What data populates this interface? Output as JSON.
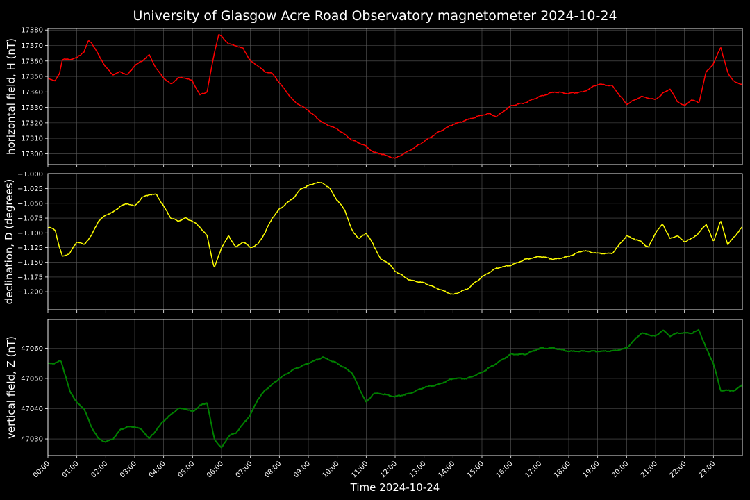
{
  "chart_data": {
    "type": "line",
    "title": "University of Glasgow Acre Road Observatory magnetometer 2024-10-24",
    "xlabel": "Time 2024-10-24",
    "x_tick_labels": [
      "00:00",
      "01:00",
      "02:00",
      "03:00",
      "04:00",
      "05:00",
      "06:00",
      "07:00",
      "08:00",
      "09:00",
      "10:00",
      "11:00",
      "12:00",
      "13:00",
      "14:00",
      "15:00",
      "16:00",
      "17:00",
      "18:00",
      "19:00",
      "20:00",
      "21:00",
      "22:00",
      "23:00"
    ],
    "xlim_hours": [
      0,
      24
    ],
    "grid": true,
    "panels": [
      {
        "name": "horizontal",
        "ylabel": "horizontal field, H (nT)",
        "color": "#ff0000",
        "ylim": [
          17293,
          17381
        ],
        "y_ticks": [
          17300,
          17310,
          17320,
          17330,
          17340,
          17350,
          17360,
          17370,
          17380
        ],
        "y_tick_labels": [
          "17300",
          "17310",
          "17320",
          "17330",
          "17340",
          "17350",
          "17360",
          "17370",
          "17380"
        ],
        "x_hours": [
          0,
          0.25,
          0.4,
          0.5,
          0.75,
          1.0,
          1.25,
          1.4,
          1.5,
          1.75,
          2.0,
          2.25,
          2.5,
          2.75,
          3.0,
          3.25,
          3.5,
          3.75,
          4.0,
          4.25,
          4.5,
          4.75,
          5.0,
          5.25,
          5.5,
          5.75,
          5.9,
          6.0,
          6.25,
          6.5,
          6.75,
          7.0,
          7.25,
          7.5,
          7.75,
          8.0,
          8.5,
          9.0,
          9.5,
          10.0,
          10.5,
          11.0,
          11.25,
          11.5,
          12.0,
          12.5,
          13.0,
          13.5,
          14.0,
          14.5,
          15.0,
          15.25,
          15.5,
          16.0,
          16.5,
          17.0,
          17.5,
          18.0,
          18.5,
          19.0,
          19.5,
          20.0,
          20.5,
          21.0,
          21.25,
          21.5,
          21.75,
          22.0,
          22.25,
          22.5,
          22.75,
          23.0,
          23.25,
          23.5,
          23.75,
          24.0
        ],
        "values": [
          17349,
          17347,
          17352,
          17361,
          17361,
          17362,
          17366,
          17373,
          17372,
          17364,
          17356,
          17351,
          17353,
          17351,
          17357,
          17360,
          17364,
          17355,
          17349,
          17345,
          17349,
          17349,
          17347,
          17338,
          17340,
          17365,
          17377,
          17376,
          17371,
          17370,
          17368,
          17360,
          17357,
          17353,
          17352,
          17346,
          17334,
          17328,
          17320,
          17316,
          17309,
          17305,
          17301,
          17300,
          17297,
          17302,
          17308,
          17314,
          17319,
          17322,
          17325,
          17326,
          17324,
          17331,
          17333,
          17337,
          17340,
          17339,
          17340,
          17345,
          17344,
          17332,
          17337,
          17335,
          17339,
          17342,
          17334,
          17331,
          17335,
          17333,
          17353,
          17358,
          17369,
          17352,
          17346,
          17345
        ]
      },
      {
        "name": "declination",
        "ylabel": "declination, D (degrees)",
        "color": "#ffff00",
        "ylim": [
          -1.2305,
          -0.9995
        ],
        "y_ticks": [
          -1.2,
          -1.175,
          -1.15,
          -1.125,
          -1.1,
          -1.075,
          -1.05,
          -1.025,
          -1.0
        ],
        "y_tick_labels": [
          "−1.200",
          "−1.175",
          "−1.150",
          "−1.125",
          "−1.100",
          "−1.075",
          "−1.050",
          "−1.025",
          "−1.000"
        ],
        "x_hours": [
          0,
          0.25,
          0.4,
          0.5,
          0.75,
          1.0,
          1.25,
          1.5,
          1.75,
          2.0,
          2.25,
          2.5,
          2.75,
          3.0,
          3.25,
          3.5,
          3.75,
          4.0,
          4.25,
          4.5,
          4.75,
          5.0,
          5.25,
          5.5,
          5.75,
          6.0,
          6.25,
          6.5,
          6.75,
          7.0,
          7.25,
          7.5,
          7.75,
          8.0,
          8.25,
          8.5,
          8.75,
          9.0,
          9.25,
          9.5,
          9.75,
          10.0,
          10.25,
          10.5,
          10.75,
          11.0,
          11.25,
          11.5,
          11.75,
          12.0,
          12.5,
          13.0,
          13.5,
          14.0,
          14.5,
          15.0,
          15.5,
          16.0,
          16.5,
          17.0,
          17.5,
          18.0,
          18.5,
          19.0,
          19.5,
          20.0,
          20.5,
          20.75,
          21.0,
          21.25,
          21.5,
          21.75,
          22.0,
          22.25,
          22.5,
          22.75,
          23.0,
          23.25,
          23.5,
          23.75,
          24.0
        ],
        "values": [
          -1.09,
          -1.095,
          -1.125,
          -1.14,
          -1.135,
          -1.115,
          -1.12,
          -1.105,
          -1.08,
          -1.07,
          -1.065,
          -1.055,
          -1.05,
          -1.055,
          -1.04,
          -1.035,
          -1.035,
          -1.055,
          -1.075,
          -1.08,
          -1.075,
          -1.08,
          -1.09,
          -1.105,
          -1.16,
          -1.125,
          -1.105,
          -1.125,
          -1.115,
          -1.125,
          -1.12,
          -1.1,
          -1.075,
          -1.06,
          -1.05,
          -1.04,
          -1.025,
          -1.02,
          -1.015,
          -1.015,
          -1.025,
          -1.045,
          -1.06,
          -1.095,
          -1.11,
          -1.1,
          -1.12,
          -1.145,
          -1.15,
          -1.165,
          -1.18,
          -1.185,
          -1.195,
          -1.205,
          -1.195,
          -1.175,
          -1.16,
          -1.155,
          -1.145,
          -1.14,
          -1.145,
          -1.14,
          -1.13,
          -1.135,
          -1.135,
          -1.105,
          -1.115,
          -1.125,
          -1.1,
          -1.085,
          -1.11,
          -1.105,
          -1.115,
          -1.11,
          -1.1,
          -1.085,
          -1.115,
          -1.08,
          -1.12,
          -1.105,
          -1.09
        ]
      },
      {
        "name": "vertical",
        "ylabel": "vertical field, Z (nT)",
        "color": "#008000",
        "ylim": [
          47024.5,
          47069.5
        ],
        "y_ticks": [
          47030,
          47040,
          47050,
          47060
        ],
        "y_tick_labels": [
          "47030",
          "47040",
          "47050",
          "47060"
        ],
        "x_hours": [
          0,
          0.25,
          0.45,
          0.75,
          1.0,
          1.25,
          1.5,
          1.75,
          2.0,
          2.25,
          2.5,
          2.75,
          3.0,
          3.25,
          3.5,
          3.75,
          4.0,
          4.25,
          4.5,
          4.75,
          5.0,
          5.25,
          5.5,
          5.75,
          6.0,
          6.25,
          6.5,
          6.75,
          7.0,
          7.25,
          7.5,
          7.75,
          8.0,
          8.5,
          9.0,
          9.5,
          10.0,
          10.5,
          10.75,
          11.0,
          11.25,
          11.5,
          12.0,
          12.5,
          13.0,
          13.5,
          14.0,
          14.5,
          15.0,
          15.5,
          16.0,
          16.5,
          17.0,
          17.5,
          18.0,
          18.5,
          19.0,
          19.5,
          20.0,
          20.5,
          21.0,
          21.25,
          21.5,
          21.75,
          22.0,
          22.25,
          22.5,
          22.75,
          23.0,
          23.25,
          23.5,
          23.75,
          24.0
        ],
        "values": [
          47055,
          47055,
          47056,
          47046,
          47042,
          47040,
          47034,
          47030,
          47029,
          47030,
          47033,
          47034,
          47034,
          47033,
          47030,
          47033,
          47036,
          47038,
          47040,
          47040,
          47039,
          47041,
          47042,
          47030,
          47027,
          47031,
          47032,
          47035,
          47038,
          47043,
          47046,
          47048,
          47050,
          47053,
          47055,
          47057,
          47055,
          47052,
          47047,
          47042,
          47045,
          47045,
          47044,
          47045,
          47047,
          47048,
          47050,
          47050,
          47052,
          47055,
          47058,
          47058,
          47060,
          47060,
          47059,
          47059,
          47059,
          47059,
          47060,
          47065,
          47064,
          47066,
          47064,
          47065,
          47065,
          47065,
          47066,
          47060,
          47055,
          47046,
          47046,
          47046,
          47048
        ]
      }
    ]
  }
}
